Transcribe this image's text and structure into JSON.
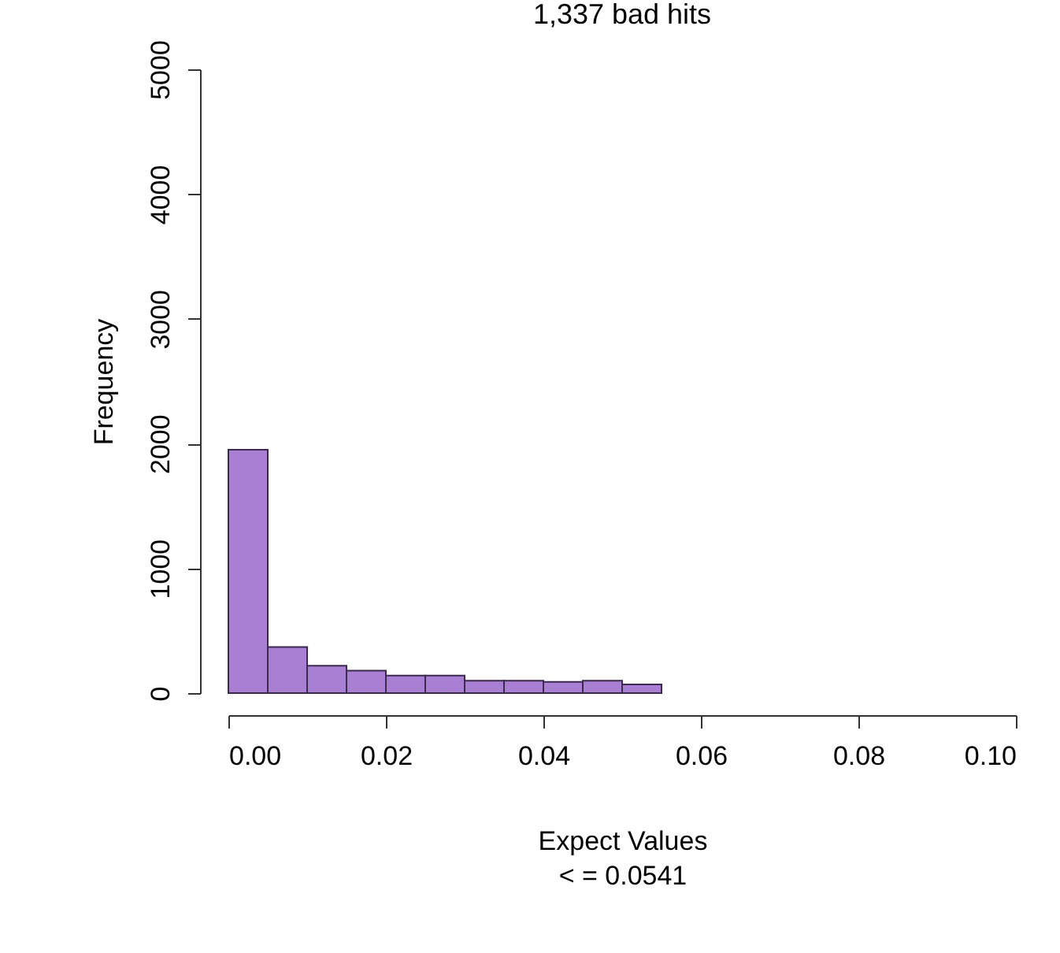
{
  "chart_data": {
    "type": "histogram",
    "title": "1,337 bad hits",
    "xlabel": "Expect Values",
    "ylabel": "Frequency",
    "annotations": [
      "< = 0.0541"
    ],
    "bins": [
      0,
      0.005,
      0.01,
      0.015,
      0.02,
      0.025,
      0.03,
      0.035,
      0.04,
      0.045,
      0.05,
      0.055
    ],
    "values": [
      1950,
      370,
      220,
      180,
      140,
      140,
      100,
      100,
      90,
      100,
      70
    ],
    "color": "#a87fd2",
    "xlim": [
      0,
      0.1
    ],
    "xticks": [
      {
        "value": 0,
        "label": "0.00"
      },
      {
        "value": 0.02,
        "label": "0.02"
      },
      {
        "value": 0.04,
        "label": "0.04"
      },
      {
        "value": 0.06,
        "label": "0.06"
      },
      {
        "value": 0.08,
        "label": "0.08"
      },
      {
        "value": 0.1,
        "label": "0.10"
      }
    ],
    "ylim": [
      0,
      5000
    ],
    "yticks": [
      0,
      1000,
      2000,
      3000,
      4000,
      5000
    ],
    "grid": false
  }
}
